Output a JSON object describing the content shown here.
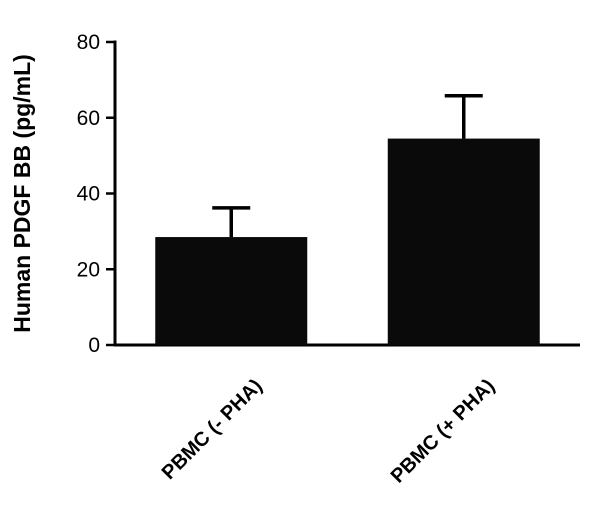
{
  "chart_data": {
    "type": "bar",
    "title": "",
    "xlabel": "",
    "ylabel": "Human PDGF BB (pg/mL)",
    "categories": [
      "PBMC (- PHA)",
      "PBMC (+ PHA)"
    ],
    "values": [
      28.5,
      54.5
    ],
    "error_upper": [
      7.7,
      11.3
    ],
    "error_tops": [
      36.2,
      65.8
    ],
    "ylim": [
      0,
      80
    ],
    "yticks": [
      0,
      20,
      40,
      60,
      80
    ],
    "bar_color": "#0a0a0a",
    "axis_color": "#000000",
    "grid": false,
    "legend_position": "none",
    "tick_label_rotation_deg": -45
  }
}
